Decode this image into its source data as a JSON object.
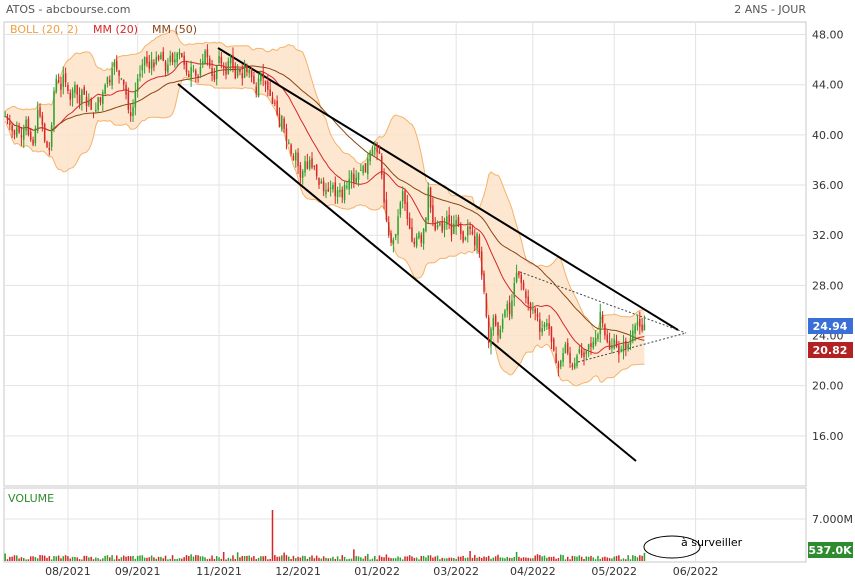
{
  "header": {
    "title": "ATOS - abcbourse.com",
    "period": "2 ANS - JOUR",
    "legend": [
      "BOLL (20, 2)",
      "MM (20)",
      "MM (50)"
    ]
  },
  "volume_panel": {
    "label": "VOLUME",
    "tick": "7.000M",
    "last_badge": "537.0K",
    "annotation": "à surveiller"
  },
  "colors": {
    "up": "#2ca02c",
    "down": "#d62728",
    "mm20": "#d62728",
    "mm50": "#8b4513",
    "boll_fill": "#fde3c8",
    "boll_line": "#f4b36a",
    "last_price_badge": "#3a6fd8",
    "low_badge": "#b22222",
    "volume_badge": "#2e8b2e",
    "grid": "#e3e3e3",
    "legend_boll": "#f0a040",
    "legend_mm20": "#d62728",
    "legend_mm50": "#8b4513"
  },
  "chart_data": {
    "type": "candlestick",
    "y_ticks": [
      "16.00",
      "20.00",
      "24.00",
      "28.00",
      "32.00",
      "36.00",
      "40.00",
      "44.00",
      "48.00"
    ],
    "ylim": [
      12,
      49
    ],
    "x_ticks": [
      "08/2021",
      "09/2021",
      "11/2021",
      "12/2021",
      "01/2022",
      "03/2022",
      "04/2022",
      "05/2022",
      "06/2022"
    ],
    "tick_positions_sessions": [
      27,
      57,
      92,
      126,
      160,
      194,
      227,
      262,
      297
    ],
    "total_slots": 345,
    "last_price": "24.94",
    "low_marker": "20.82",
    "close_series": [
      41.5,
      41.2,
      40.8,
      40.3,
      40.0,
      40.6,
      40.2,
      39.8,
      40.5,
      41.2,
      40.0,
      39.6,
      39.2,
      40.5,
      42.0,
      41.5,
      40.8,
      39.5,
      39.0,
      38.8,
      40.8,
      43.5,
      44.5,
      44.2,
      43.6,
      44.8,
      44.2,
      43.5,
      42.8,
      43.6,
      44.0,
      43.2,
      42.5,
      43.6,
      43.2,
      42.3,
      42.7,
      42.0,
      41.7,
      42.0,
      43.0,
      42.6,
      43.4,
      44.0,
      44.6,
      44.2,
      45.3,
      45.8,
      45.2,
      44.7,
      44.5,
      44.0,
      43.2,
      42.0,
      41.5,
      42.2,
      43.5,
      44.5,
      44.9,
      45.6,
      46.2,
      45.7,
      45.3,
      46.0,
      45.4,
      46.2,
      46.0,
      46.4,
      45.9,
      45.1,
      45.6,
      46.3,
      45.8,
      46.0,
      46.5,
      46.6,
      46.2,
      45.6,
      45.0,
      44.6,
      45.4,
      45.2,
      44.7,
      44.6,
      45.4,
      45.9,
      46.7,
      46.2,
      45.5,
      44.7,
      44.4,
      45.5,
      46.3,
      45.7,
      45.3,
      44.8,
      45.9,
      46.2,
      45.3,
      44.5,
      45.4,
      45.0,
      44.5,
      45.6,
      45.0,
      45.2,
      44.6,
      44.1,
      43.3,
      44.5,
      44.9,
      44.5,
      44.0,
      43.6,
      43.1,
      42.5,
      42.5,
      41.6,
      40.6,
      41.5,
      40.5,
      39.5,
      39.4,
      38.5,
      38.0,
      38.6,
      37.5,
      36.6,
      37.1,
      37.9,
      37.3,
      38.0,
      37.4,
      37.5,
      36.7,
      36.0,
      36.3,
      35.5,
      35.6,
      35.5,
      35.8,
      36.0,
      35.1,
      35.6,
      35.6,
      35.0,
      36.0,
      35.9,
      36.5,
      37.0,
      36.2,
      36.6,
      37.0,
      37.2,
      37.5,
      37.0,
      38.1,
      38.6,
      38.8,
      39.0,
      38.6,
      38.5,
      36.8,
      34.6,
      33.2,
      32.0,
      31.4,
      31.6,
      32.1,
      33.5,
      34.6,
      35.5,
      34.5,
      33.3,
      32.5,
      31.5,
      31.3,
      31.9,
      32.2,
      31.4,
      32.5,
      33.4,
      35.8,
      34.2,
      33.0,
      32.4,
      32.8,
      33.0,
      32.3,
      32.9,
      33.5,
      33.0,
      32.0,
      32.9,
      33.2,
      32.7,
      32.1,
      31.5,
      31.8,
      32.7,
      32.5,
      32.1,
      31.2,
      32.1,
      30.5,
      28.8,
      27.5,
      25.5,
      23.4,
      24.5,
      25.4,
      24.8,
      24.0,
      24.5,
      25.3,
      26.0,
      26.5,
      25.7,
      26.8,
      28.2,
      29.0,
      28.8,
      28.2,
      27.7,
      27.0,
      26.5,
      26.0,
      26.1,
      25.8,
      25.5,
      24.3,
      24.6,
      24.9,
      25.0,
      24.5,
      23.5,
      22.8,
      21.8,
      21.4,
      22.0,
      22.6,
      23.3,
      22.6,
      21.8,
      21.5,
      21.8,
      22.4,
      22.9,
      22.4,
      22.3,
      22.8,
      23.3,
      23.1,
      23.5,
      23.8,
      24.1,
      25.9,
      25.0,
      24.0,
      23.5,
      22.9,
      23.2,
      23.7,
      23.1,
      22.5,
      22.9,
      23.4,
      22.9,
      23.3,
      23.8,
      24.4,
      24.8,
      25.1,
      24.7,
      24.4,
      24.9
    ]
  }
}
